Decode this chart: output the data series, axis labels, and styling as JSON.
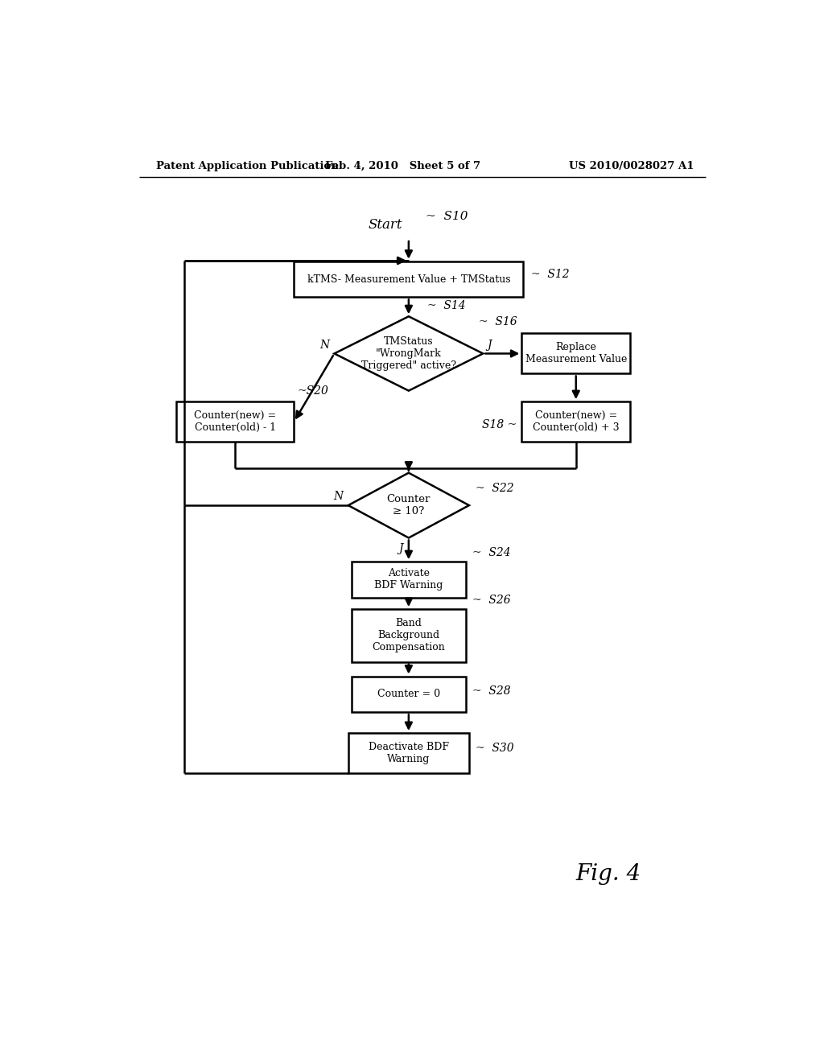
{
  "bg_color": "#ffffff",
  "header_left": "Patent Application Publication",
  "header_mid": "Feb. 4, 2010   Sheet 5 of 7",
  "header_right": "US 2010/0028027 A1",
  "fig_label": "Fig. 4",
  "nodes": {
    "s12_box": "kTMS- Measurement Value + TMStatus",
    "s14_diamond": "TMStatus\n\"WrongMark\nTriggered\" active?",
    "s16_box": "Replace\nMeasurement Value",
    "s18_box": "Counter(new) =\nCounter(old) + 3",
    "s20_box": "Counter(new) =\nCounter(old) - 1",
    "s22_diamond": "Counter\n≥ 10?",
    "s24_box": "Activate\nBDF Warning",
    "s26_box": "Band\nBackground\nCompensation",
    "s28_box": "Counter = 0",
    "s30_box": "Deactivate BDF\nWarning"
  },
  "line_color": "#000000",
  "box_color": "#ffffff",
  "text_color": "#000000"
}
